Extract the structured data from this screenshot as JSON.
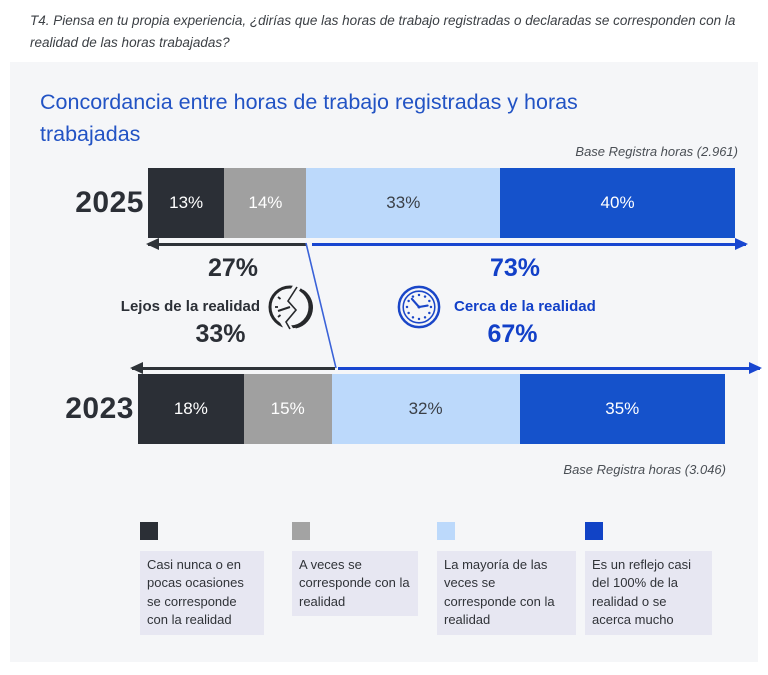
{
  "question": "T4. Piensa en tu propia experiencia, ¿dirías que las horas de trabajo registradas o declaradas se corresponden con la realidad de las horas trabajadas?",
  "panel": {
    "title": "Concordancia entre horas de trabajo registradas y horas trabajadas"
  },
  "colors": {
    "panel_bg": "#F5F6F8",
    "dark": "#2B2F36",
    "gray": "#A0A0A0",
    "light_blue": "#BCD9FB",
    "blue": "#1552CB",
    "title_blue": "#2253C4",
    "accent_blue": "#1240C8",
    "legend_bg": "#E7E7F2"
  },
  "chart_data": {
    "type": "bar",
    "variant": "stacked-horizontal",
    "unit": "%",
    "title": "Concordancia entre horas de trabajo registradas y horas trabajadas",
    "categories": [
      "Casi nunca o en pocas ocasiones se corresponde con la realidad",
      "A veces se corresponde con la realidad",
      "La mayoría de las veces se corresponde con la realidad",
      "Es un reflejo casi del 100% de la realidad o se acerca mucho"
    ],
    "group_labels": {
      "lejos": "Lejos de la realidad",
      "cerca": "Cerca de la realidad"
    },
    "series": [
      {
        "name": "2025",
        "values": [
          13,
          14,
          33,
          40
        ],
        "labels": [
          "13%",
          "14%",
          "33%",
          "40%"
        ],
        "lejos_total": "27%",
        "cerca_total": "73%",
        "base": "Base Registra horas (2.961)"
      },
      {
        "name": "2023",
        "values": [
          18,
          15,
          32,
          35
        ],
        "labels": [
          "18%",
          "15%",
          "32%",
          "35%"
        ],
        "lejos_total": "33%",
        "cerca_total": "67%",
        "base": "Base Registra horas (3.046)"
      }
    ]
  },
  "legend": {
    "items": [
      {
        "label": "Casi nunca o en pocas ocasiones se corresponde con la realidad",
        "color": "#2B2F36"
      },
      {
        "label": "A veces se corresponde con la realidad",
        "color": "#A3A3A3"
      },
      {
        "label": "La mayoría de las veces se corresponde con la realidad",
        "color": "#BCD9FB"
      },
      {
        "label": "Es un reflejo casi del 100% de la realidad o se acerca mucho",
        "color": "#1143C6"
      }
    ]
  }
}
